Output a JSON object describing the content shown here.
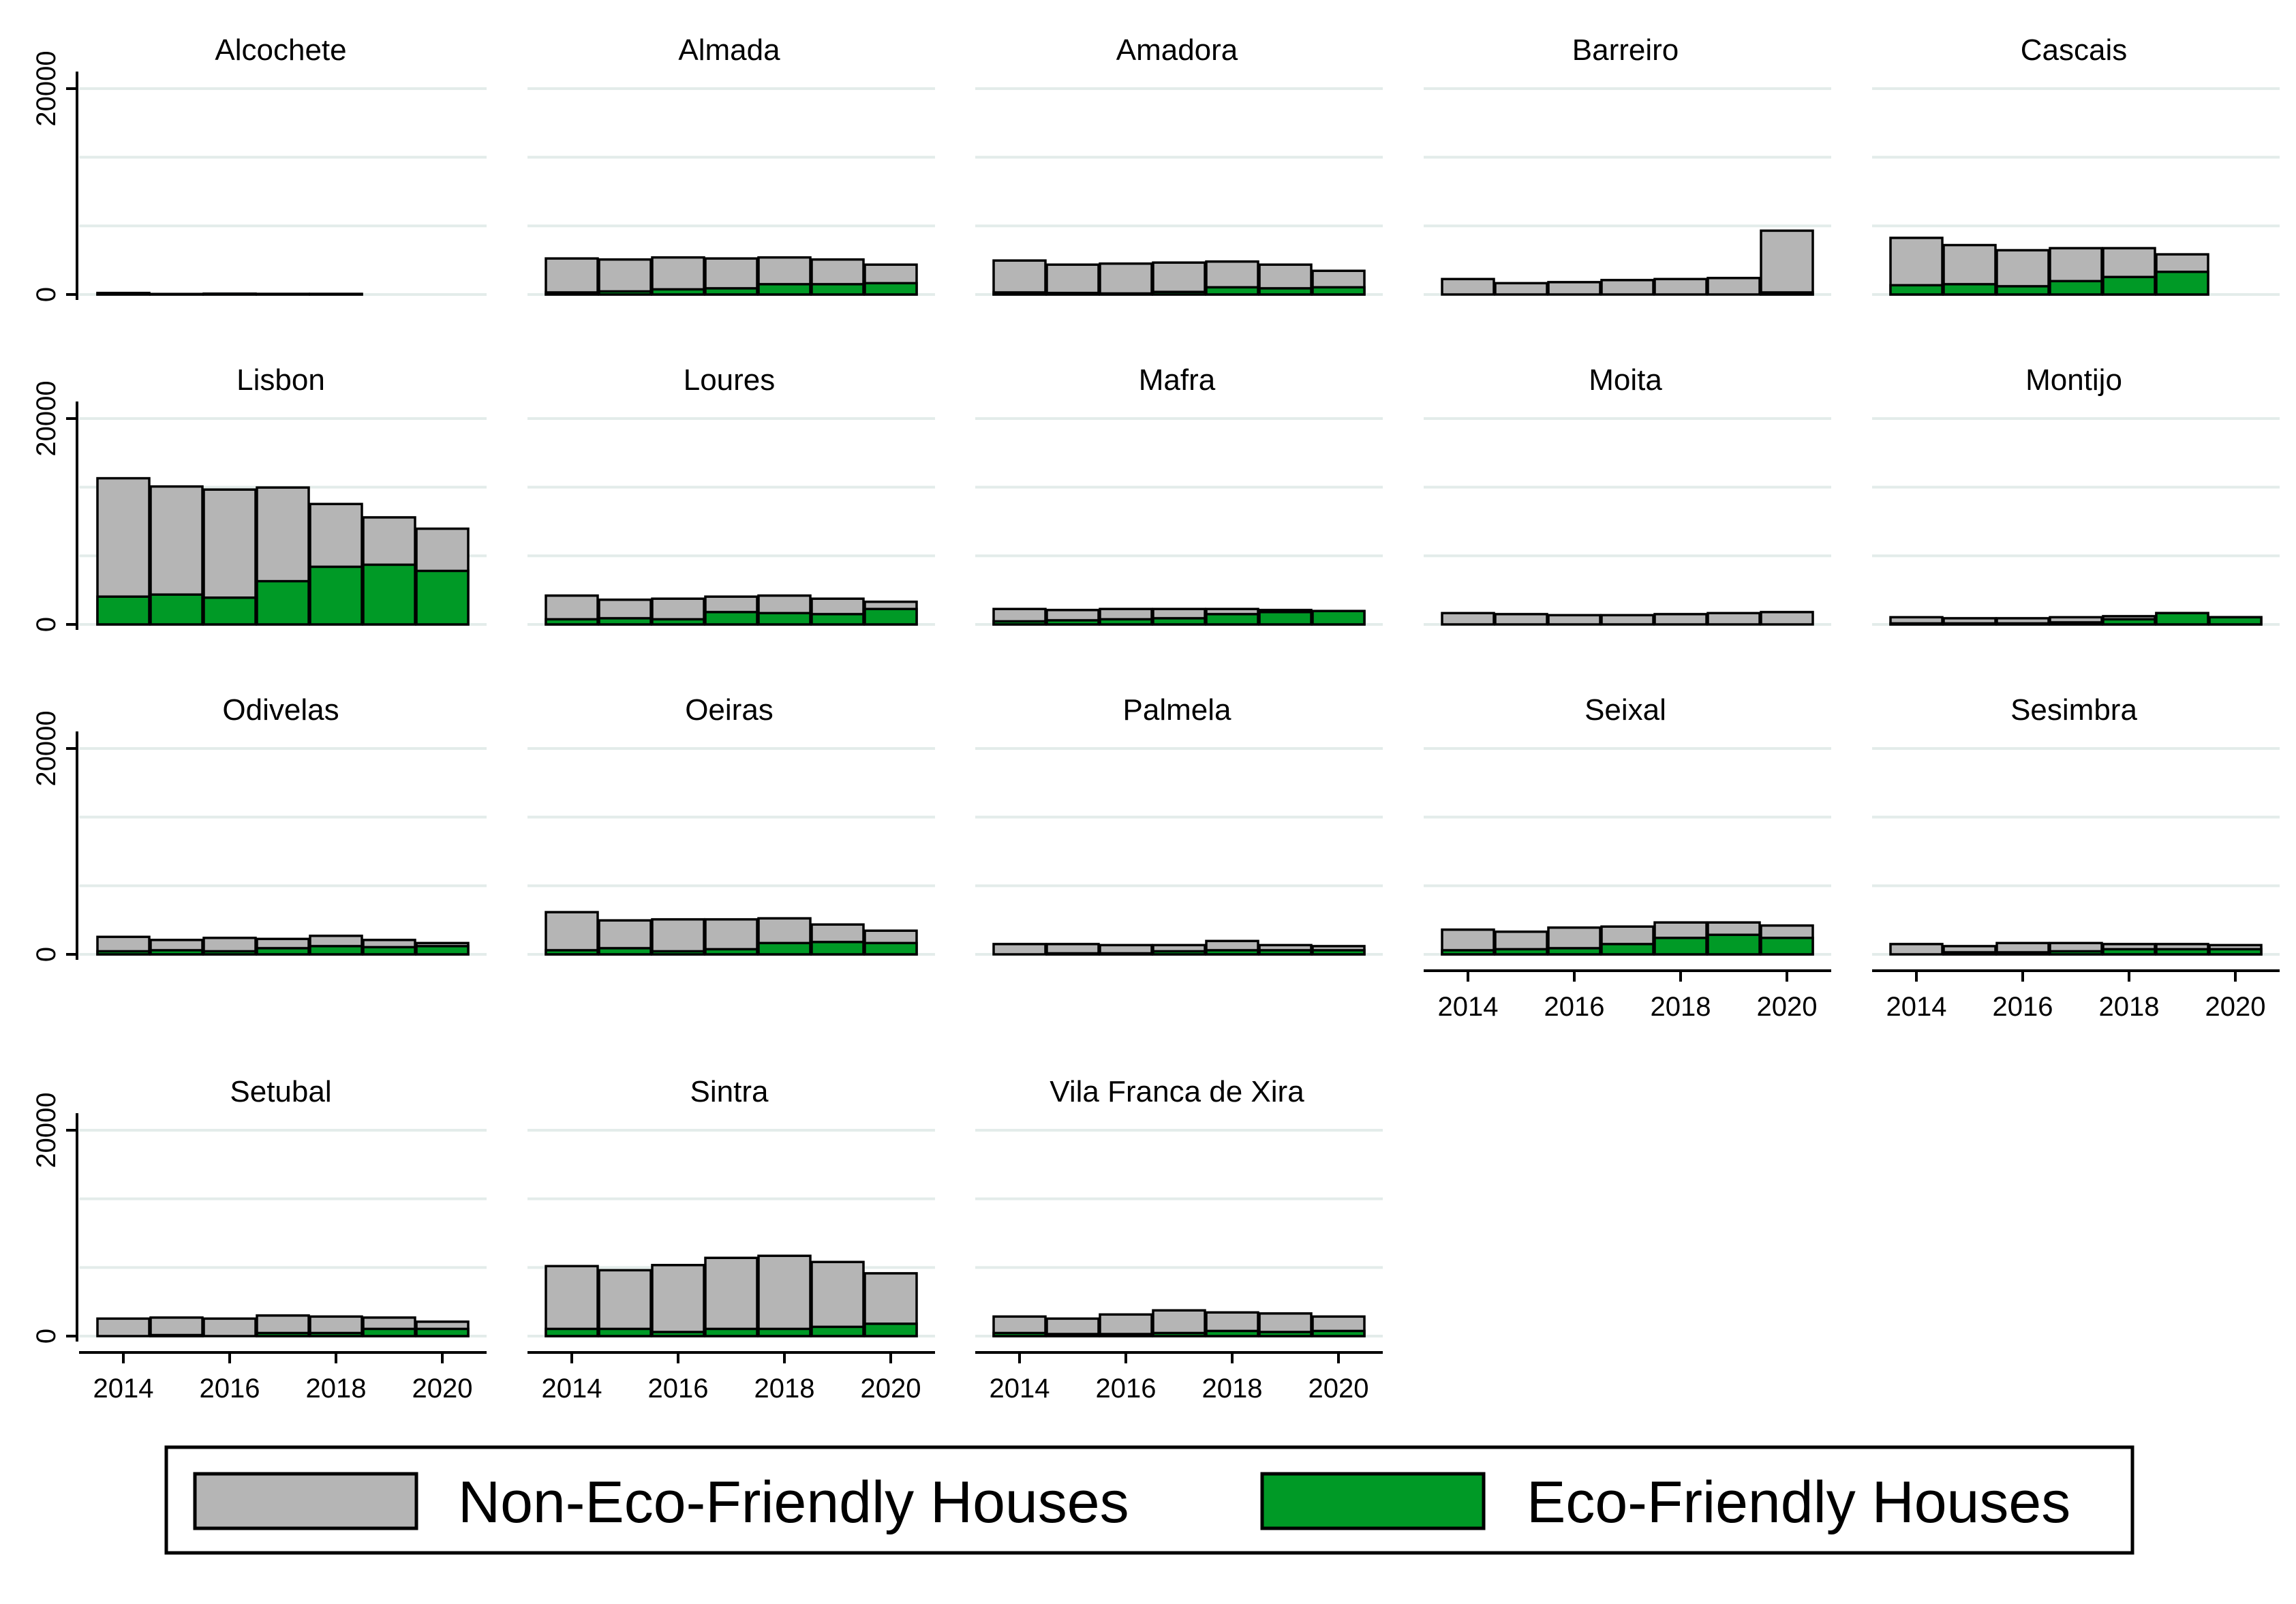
{
  "chart_data": {
    "type": "bar",
    "stacked": true,
    "years": [
      2014,
      2015,
      2016,
      2017,
      2018,
      2019,
      2020
    ],
    "x_ticks": [
      "2014",
      "2016",
      "2018",
      "2020"
    ],
    "y_ticks": [
      "0",
      "20000"
    ],
    "ylim": [
      0,
      20000
    ],
    "grid": true,
    "legend_position": "bottom",
    "series_labels": {
      "non_eco": "Non-Eco-Friendly Houses",
      "eco": "Eco-Friendly Houses"
    },
    "colors": {
      "non_eco": "#b5b5b5",
      "eco": "#009a26",
      "grid": "#e3ecea",
      "outline": "#000000"
    },
    "panels": [
      {
        "name": "Alcochete",
        "total": [
          150,
          50,
          80,
          60,
          60,
          0,
          0
        ],
        "eco": [
          30,
          10,
          20,
          20,
          20,
          0,
          0
        ]
      },
      {
        "name": "Almada",
        "total": [
          3500,
          3400,
          3600,
          3500,
          3600,
          3400,
          2900
        ],
        "eco": [
          200,
          300,
          500,
          600,
          1000,
          1000,
          1100
        ]
      },
      {
        "name": "Amadora",
        "total": [
          3300,
          2900,
          3000,
          3100,
          3200,
          2900,
          2300
        ],
        "eco": [
          200,
          150,
          100,
          250,
          700,
          600,
          700
        ]
      },
      {
        "name": "Barreiro",
        "total": [
          1500,
          1100,
          1200,
          1400,
          1500,
          1600,
          6200
        ],
        "eco": [
          0,
          0,
          0,
          0,
          0,
          0,
          200
        ]
      },
      {
        "name": "Cascais",
        "total": [
          5500,
          4800,
          4300,
          4500,
          4500,
          3900,
          0
        ],
        "eco": [
          900,
          1000,
          800,
          1300,
          1700,
          2200,
          0
        ]
      },
      {
        "name": "Lisbon",
        "total": [
          14200,
          13400,
          13100,
          13300,
          11700,
          10400,
          9300
        ],
        "eco": [
          2700,
          2900,
          2600,
          4200,
          5600,
          5800,
          5200
        ]
      },
      {
        "name": "Loures",
        "total": [
          2800,
          2400,
          2500,
          2700,
          2800,
          2500,
          2200
        ],
        "eco": [
          500,
          600,
          500,
          1200,
          1100,
          1000,
          1500
        ]
      },
      {
        "name": "Mafra",
        "total": [
          1500,
          1400,
          1500,
          1500,
          1500,
          1400,
          1300
        ],
        "eco": [
          300,
          400,
          500,
          600,
          1000,
          1200,
          1300
        ]
      },
      {
        "name": "Moita",
        "total": [
          1100,
          1000,
          900,
          900,
          1000,
          1100,
          1200
        ],
        "eco": [
          0,
          0,
          0,
          0,
          0,
          0,
          0
        ]
      },
      {
        "name": "Montijo",
        "total": [
          700,
          600,
          600,
          700,
          800,
          1100,
          700
        ],
        "eco": [
          100,
          100,
          100,
          200,
          500,
          1100,
          700
        ]
      },
      {
        "name": "Odivelas",
        "total": [
          1700,
          1400,
          1600,
          1500,
          1800,
          1400,
          1100
        ],
        "eco": [
          300,
          400,
          300,
          600,
          800,
          700,
          800
        ]
      },
      {
        "name": "Oeiras",
        "total": [
          4100,
          3300,
          3400,
          3400,
          3500,
          2900,
          2300
        ],
        "eco": [
          400,
          600,
          300,
          500,
          1100,
          1200,
          1100
        ]
      },
      {
        "name": "Palmela",
        "total": [
          1000,
          1000,
          900,
          900,
          1300,
          900,
          800
        ],
        "eco": [
          0,
          100,
          100,
          300,
          400,
          400,
          400
        ]
      },
      {
        "name": "Seixal",
        "total": [
          2400,
          2200,
          2600,
          2700,
          3100,
          3100,
          2800
        ],
        "eco": [
          400,
          500,
          600,
          1000,
          1600,
          1900,
          1600
        ]
      },
      {
        "name": "Sesimbra",
        "total": [
          1000,
          800,
          1100,
          1100,
          1000,
          1000,
          900
        ],
        "eco": [
          0,
          200,
          200,
          300,
          500,
          500,
          500
        ]
      },
      {
        "name": "Setubal",
        "total": [
          1700,
          1800,
          1700,
          2000,
          1900,
          1800,
          1400
        ],
        "eco": [
          0,
          100,
          0,
          300,
          300,
          700,
          700
        ]
      },
      {
        "name": "Sintra",
        "total": [
          6800,
          6400,
          6900,
          7600,
          7800,
          7200,
          6100
        ],
        "eco": [
          700,
          700,
          400,
          700,
          700,
          900,
          1200
        ]
      },
      {
        "name": "Vila Franca de Xira",
        "total": [
          1900,
          1700,
          2100,
          2500,
          2300,
          2200,
          1900
        ],
        "eco": [
          300,
          200,
          200,
          300,
          500,
          400,
          500
        ]
      }
    ]
  }
}
